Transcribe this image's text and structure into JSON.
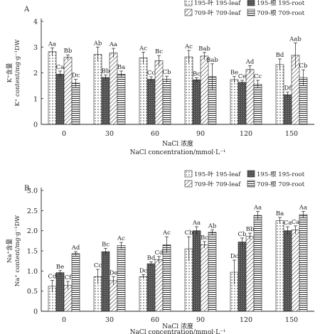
{
  "chart_data": [
    {
      "type": "bar",
      "panel_label": "A",
      "categories": [
        "0",
        "30",
        "60",
        "90",
        "120",
        "150"
      ],
      "ylabel_cn": "K⁺含量",
      "ylabel_en": "K⁺ content/mg·g⁻¹DW",
      "xlabel_cn": "NaCl 浓度",
      "xlabel_en": "NaCl concentration/mmol·L⁻¹",
      "ylim": [
        0,
        4
      ],
      "yticks": [
        "0",
        "1",
        "2",
        "3",
        "4"
      ],
      "legend_position": "top-right",
      "series": [
        {
          "name": "195-叶 195-leaf",
          "pattern": "dots",
          "values": [
            2.82,
            2.72,
            2.58,
            2.62,
            1.74,
            2.32
          ],
          "errors": [
            0.15,
            0.28,
            0.22,
            0.25,
            0.12,
            0.22
          ],
          "labels": [
            "Aa",
            "Ab",
            "Ac",
            "Ac",
            "Be",
            "Bd"
          ]
        },
        {
          "name": "195-根 195-root",
          "pattern": "dark",
          "values": [
            1.95,
            1.82,
            1.75,
            1.73,
            1.63,
            1.15
          ],
          "errors": [
            0.12,
            0.1,
            0.1,
            0.08,
            0.08,
            0.1
          ],
          "labels": [
            "Ca",
            "Bb",
            "Cc",
            "Bc",
            "Ce",
            "Df"
          ]
        },
        {
          "name": "709-叶 709-leaf",
          "pattern": "hatch",
          "values": [
            2.6,
            2.77,
            2.47,
            2.65,
            2.13,
            2.68
          ],
          "errors": [
            0.1,
            0.18,
            0.2,
            0.14,
            0.15,
            0.48
          ],
          "labels": [
            "Bb",
            "Aa",
            "Bc",
            "Bab",
            "Ad",
            "Aab"
          ]
        },
        {
          "name": "709-根 709-root",
          "pattern": "stripes",
          "values": [
            1.6,
            1.95,
            1.75,
            1.85,
            1.56,
            1.82
          ],
          "errors": [
            0.15,
            0.12,
            0.12,
            0.5,
            0.15,
            0.3
          ],
          "labels": [
            "Dc",
            "Ba",
            "Cb",
            "Bab",
            "Cc",
            "Cb"
          ]
        }
      ]
    },
    {
      "type": "bar",
      "panel_label": "B",
      "categories": [
        "0",
        "30",
        "60",
        "90",
        "120",
        "150"
      ],
      "ylabel_cn": "Na⁺含量",
      "ylabel_en": "Na⁺ content/mg·g⁻¹DW",
      "xlabel_cn": "NaCl 浓度",
      "xlabel_en": "NaCl concentration/mmol·L⁻¹",
      "ylim": [
        0,
        3.0
      ],
      "yticks": [
        "0",
        "0.5",
        "1.0",
        "1.5",
        "2.0",
        "2.5",
        "3.0"
      ],
      "legend_position": "top-right",
      "series": [
        {
          "name": "195-叶 195-leaf",
          "pattern": "dots",
          "values": [
            0.62,
            0.86,
            0.86,
            1.55,
            0.97,
            2.25
          ],
          "errors": [
            0.15,
            0.18,
            0.05,
            0.3,
            0.3,
            0.08
          ],
          "labels": [
            "Cd",
            "Cc",
            "Dc",
            "Cb",
            "Dc",
            "Ba"
          ]
        },
        {
          "name": "195-根 195-root",
          "pattern": "dark",
          "values": [
            0.96,
            1.48,
            1.18,
            2.0,
            1.72,
            2.0
          ],
          "errors": [
            0.05,
            0.08,
            0.05,
            0.1,
            0.1,
            0.1
          ],
          "labels": [
            "Be",
            "Bc",
            "Bd",
            "Aa",
            "Cb",
            "Ca"
          ]
        },
        {
          "name": "709-叶 709-leaf",
          "pattern": "hatch",
          "values": [
            0.64,
            0.76,
            1.28,
            1.65,
            1.86,
            2.02
          ],
          "errors": [
            0.1,
            0.1,
            0.08,
            0.08,
            0.08,
            0.1
          ],
          "labels": [
            "Cf",
            "De",
            "Cd",
            "Bc",
            "Bb",
            "Ca"
          ]
        },
        {
          "name": "709-根 709-root",
          "pattern": "stripes",
          "values": [
            1.43,
            1.63,
            1.65,
            1.96,
            2.38,
            2.4
          ],
          "errors": [
            0.05,
            0.08,
            0.2,
            0.06,
            0.1,
            0.08
          ],
          "labels": [
            "Ad",
            "Ac",
            "Ac",
            "Ab",
            "Aa",
            "Aa"
          ]
        }
      ]
    }
  ]
}
